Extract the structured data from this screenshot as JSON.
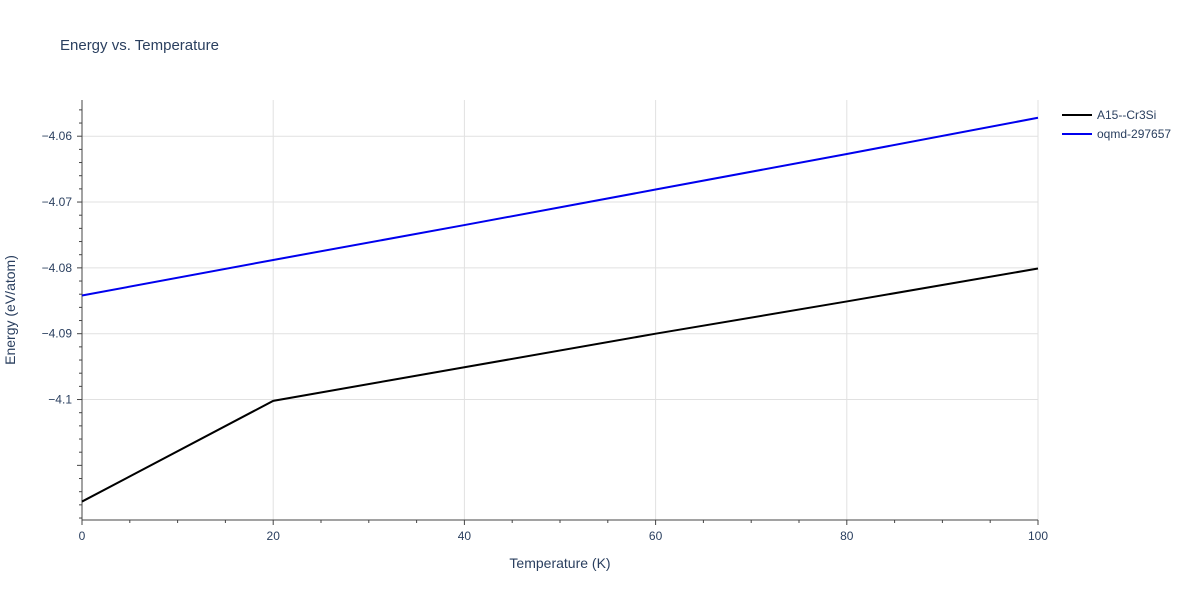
{
  "chart_data": {
    "type": "line",
    "title": "Energy vs. Temperature",
    "xlabel": "Temperature (K)",
    "ylabel": "Energy (eV/atom)",
    "xlim": [
      0,
      100
    ],
    "ylim": [
      -4.1183,
      -4.0545
    ],
    "x_ticks": [
      0,
      20,
      40,
      60,
      80,
      100
    ],
    "x_tick_labels": [
      "0",
      "20",
      "40",
      "60",
      "80",
      "100"
    ],
    "y_ticks": [
      -4.1,
      -4.09,
      -4.08,
      -4.07,
      -4.06
    ],
    "y_tick_labels": [
      "−4.1",
      "−4.09",
      "−4.08",
      "−4.07",
      "−4.06"
    ],
    "grid": true,
    "legend_position": "top-right",
    "series": [
      {
        "name": "A15--Cr3Si",
        "color": "#000000",
        "x": [
          0,
          20,
          40,
          60,
          80,
          100
        ],
        "y": [
          -4.1155,
          -4.1002,
          -4.0951,
          -4.09,
          -4.0851,
          -4.0801
        ]
      },
      {
        "name": "oqmd-297657",
        "color": "#0000ee",
        "x": [
          0,
          20,
          40,
          60,
          80,
          100
        ],
        "y": [
          -4.0842,
          -4.0788,
          -4.0735,
          -4.0681,
          -4.0627,
          -4.0572
        ]
      }
    ]
  }
}
